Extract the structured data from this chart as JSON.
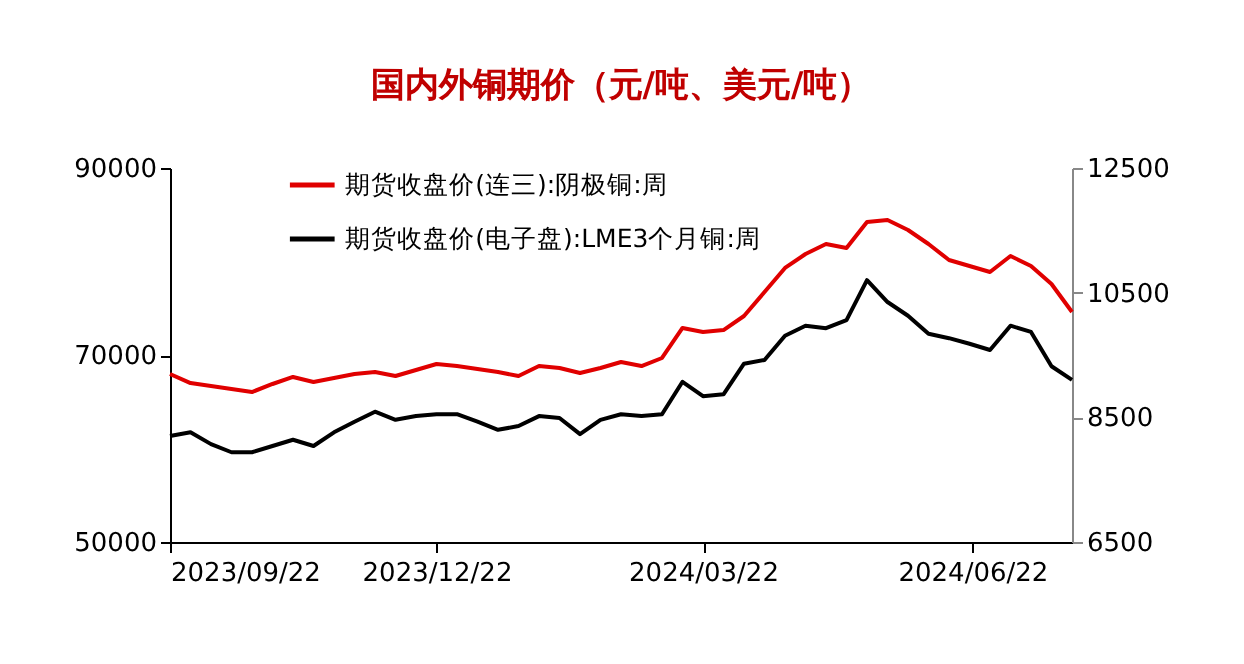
{
  "chart_data": {
    "type": "line",
    "title": "国内外铜期价（元/吨、美元/吨）",
    "x": [
      "2023-09-22",
      "2023-09-29",
      "2023-10-06",
      "2023-10-13",
      "2023-10-20",
      "2023-10-27",
      "2023-11-03",
      "2023-11-10",
      "2023-11-17",
      "2023-11-24",
      "2023-12-01",
      "2023-12-08",
      "2023-12-15",
      "2023-12-22",
      "2023-12-29",
      "2024-01-05",
      "2024-01-12",
      "2024-01-19",
      "2024-01-26",
      "2024-02-02",
      "2024-02-09",
      "2024-02-16",
      "2024-02-23",
      "2024-03-01",
      "2024-03-08",
      "2024-03-15",
      "2024-03-22",
      "2024-03-29",
      "2024-04-05",
      "2024-04-12",
      "2024-04-19",
      "2024-04-26",
      "2024-05-03",
      "2024-05-10",
      "2024-05-17",
      "2024-05-24",
      "2024-05-31",
      "2024-06-07",
      "2024-06-14",
      "2024-06-21",
      "2024-06-28",
      "2024-07-05",
      "2024-07-12",
      "2024-07-19",
      "2024-07-26"
    ],
    "series": [
      {
        "name": "期货收盘价(连三):阴极铜:周",
        "color": "#e00000",
        "values": [
          67970,
          67000,
          66680,
          66360,
          66040,
          66900,
          67650,
          67110,
          67540,
          67970,
          68180,
          67750,
          68400,
          69040,
          68820,
          68500,
          68180,
          67750,
          68820,
          68610,
          68070,
          68610,
          69250,
          68820,
          69680,
          72890,
          72460,
          72670,
          74170,
          76740,
          79310,
          80800,
          81870,
          81440,
          84220,
          84440,
          83370,
          81870,
          80160,
          79520,
          78880,
          80590,
          79520,
          77590,
          74600
        ]
      },
      {
        "name": "期货收盘价(电子盘):LME3个月铜:周",
        "color": "#000000",
        "axis": "y2",
        "values": [
          8200,
          8260,
          8070,
          7940,
          7940,
          8040,
          8140,
          8040,
          8260,
          8430,
          8590,
          8460,
          8520,
          8550,
          8550,
          8430,
          8300,
          8360,
          8520,
          8490,
          8230,
          8460,
          8550,
          8520,
          8550,
          9070,
          8840,
          8870,
          9360,
          9420,
          9810,
          9970,
          9930,
          10060,
          10700,
          10350,
          10130,
          9840,
          9770,
          9680,
          9580,
          9970,
          9870,
          9320,
          9100
        ]
      }
    ],
    "xlim": [
      "2023-09-22",
      "2024-07-26"
    ],
    "xticks": [
      {
        "value": "2023-09-22",
        "label": "2023/09/22"
      },
      {
        "value": "2023-12-22",
        "label": "2023/12/22"
      },
      {
        "value": "2024-03-22",
        "label": "2024/03/22"
      },
      {
        "value": "2024-06-22",
        "label": "2024/06/22"
      }
    ],
    "ylim": [
      50000,
      90000
    ],
    "yticks": [
      50000,
      70000,
      90000
    ],
    "y2lim": [
      6500,
      12500
    ],
    "y2ticks": [
      6500,
      8500,
      10500,
      12500
    ],
    "legend": "top",
    "grid": false,
    "marker": "none",
    "line_style": "solid"
  }
}
